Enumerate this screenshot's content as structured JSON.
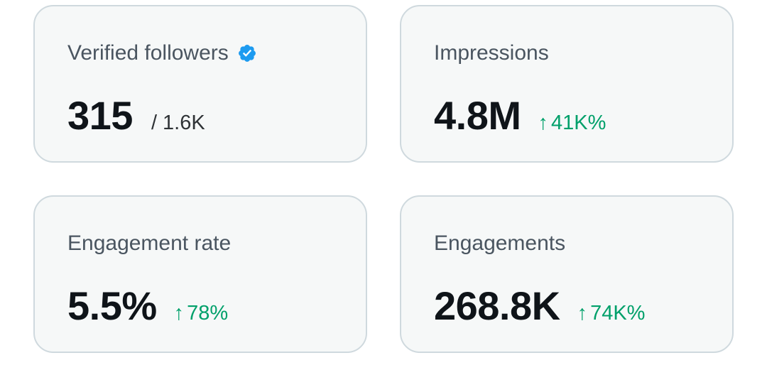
{
  "cards": [
    {
      "label": "Verified followers",
      "icon": "verified-badge-icon",
      "value": "315",
      "secondary": "/ 1.6K"
    },
    {
      "label": "Impressions",
      "value": "4.8M",
      "change": "41K%"
    },
    {
      "label": "Engagement rate",
      "value": "5.5%",
      "change": "78%"
    },
    {
      "label": "Engagements",
      "value": "268.8K",
      "change": "74K%"
    }
  ],
  "change_arrow": "↑",
  "colors": {
    "card_bg": "#f6f8f8",
    "card_border": "#cfd9de",
    "label": "#4a5560",
    "value": "#0f1419",
    "positive": "#00a06a",
    "verified": "#1d9bf0"
  }
}
